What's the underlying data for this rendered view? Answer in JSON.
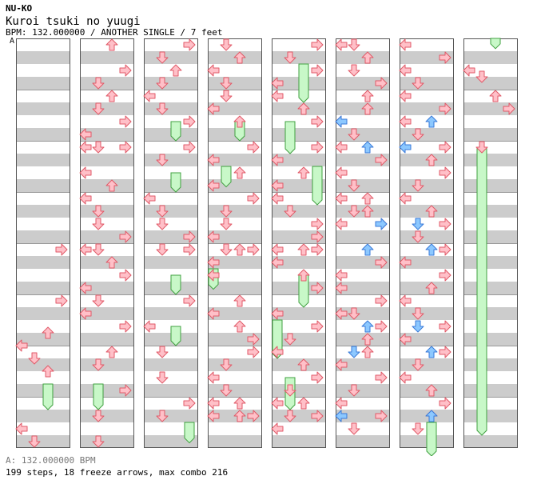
{
  "header": {
    "artist": "NU-KO",
    "title": "Kuroi tsuki no yuugi",
    "info": "BPM: 132.000000 / ANOTHER SINGLE / 7 feet",
    "marker": "A"
  },
  "footer": {
    "bpm": "A: 132.000000 BPM",
    "stats": "199 steps, 18 freeze arrows, max combo 216"
  },
  "colors": {
    "normal": "#ffc0c8",
    "normal_stroke": "#e05a68",
    "blue": "#8cc8ff",
    "blue_stroke": "#3a7ad8",
    "freeze": "#c8f8c8",
    "freeze_stroke": "#40a040",
    "band": "#cccccc"
  },
  "chart_data": {
    "type": "step_chart",
    "columns": 8,
    "measures_per_column": 8,
    "lanes": [
      "left",
      "down",
      "up",
      "right"
    ],
    "arrows": [
      [
        0,
        4.125,
        3
      ],
      [
        0,
        5.125,
        3
      ],
      [
        0,
        5.75,
        2
      ],
      [
        0,
        6,
        0
      ],
      [
        0,
        6.25,
        1
      ],
      [
        0,
        6.5,
        2
      ],
      [
        0,
        7.625,
        0
      ],
      [
        0,
        7.875,
        1
      ],
      [
        1,
        0.125,
        2
      ],
      [
        1,
        0.625,
        3
      ],
      [
        1,
        0.875,
        1
      ],
      [
        1,
        1.125,
        2
      ],
      [
        1,
        1.375,
        1
      ],
      [
        1,
        1.625,
        3
      ],
      [
        1,
        1.875,
        0
      ],
      [
        1,
        2.125,
        0
      ],
      [
        1,
        2.125,
        1
      ],
      [
        1,
        2.125,
        3
      ],
      [
        1,
        2.625,
        0
      ],
      [
        1,
        2.875,
        2
      ],
      [
        1,
        3.125,
        0
      ],
      [
        1,
        3.375,
        1
      ],
      [
        1,
        3.625,
        1
      ],
      [
        1,
        3.875,
        3
      ],
      [
        1,
        4.125,
        0
      ],
      [
        1,
        4.125,
        1
      ],
      [
        1,
        4.375,
        2
      ],
      [
        1,
        4.625,
        3
      ],
      [
        1,
        4.875,
        0
      ],
      [
        1,
        5.125,
        1
      ],
      [
        1,
        5.375,
        0
      ],
      [
        1,
        5.625,
        3
      ],
      [
        1,
        6.125,
        2
      ],
      [
        1,
        6.375,
        1
      ],
      [
        1,
        6.875,
        3
      ],
      [
        1,
        7.375,
        1
      ],
      [
        1,
        7.875,
        1
      ],
      [
        2,
        0.125,
        3
      ],
      [
        2,
        0.375,
        1
      ],
      [
        2,
        0.625,
        2
      ],
      [
        2,
        0.875,
        1
      ],
      [
        2,
        1.125,
        0
      ],
      [
        2,
        1.375,
        1
      ],
      [
        2,
        1.625,
        3
      ],
      [
        2,
        2.125,
        3
      ],
      [
        2,
        2.375,
        1
      ],
      [
        2,
        3.125,
        0
      ],
      [
        2,
        3.375,
        1
      ],
      [
        2,
        3.625,
        1
      ],
      [
        2,
        3.875,
        3
      ],
      [
        2,
        4.125,
        3
      ],
      [
        2,
        4.125,
        1
      ],
      [
        2,
        5.125,
        3
      ],
      [
        2,
        5.625,
        0
      ],
      [
        2,
        6.125,
        1
      ],
      [
        2,
        6.625,
        1
      ],
      [
        2,
        7.125,
        3
      ],
      [
        2,
        7.375,
        1
      ],
      [
        3,
        0.125,
        1
      ],
      [
        3,
        0.375,
        2
      ],
      [
        3,
        0.625,
        0
      ],
      [
        3,
        0.875,
        1
      ],
      [
        3,
        1.125,
        1
      ],
      [
        3,
        1.375,
        0
      ],
      [
        3,
        1.625,
        2
      ],
      [
        3,
        2.125,
        3
      ],
      [
        3,
        2.375,
        0
      ],
      [
        3,
        2.625,
        2
      ],
      [
        3,
        2.875,
        0
      ],
      [
        3,
        3.125,
        3
      ],
      [
        3,
        3.375,
        1
      ],
      [
        3,
        3.625,
        1
      ],
      [
        3,
        3.875,
        0
      ],
      [
        3,
        4.125,
        1
      ],
      [
        3,
        4.125,
        2
      ],
      [
        3,
        4.125,
        3
      ],
      [
        3,
        4.375,
        0
      ],
      [
        3,
        4.625,
        0
      ],
      [
        3,
        5.125,
        2
      ],
      [
        3,
        5.375,
        0
      ],
      [
        3,
        5.625,
        2
      ],
      [
        3,
        5.875,
        3
      ],
      [
        3,
        6.125,
        3
      ],
      [
        3,
        6.375,
        1
      ],
      [
        3,
        6.625,
        0
      ],
      [
        3,
        6.875,
        1
      ],
      [
        3,
        7.125,
        0
      ],
      [
        3,
        7.125,
        2
      ],
      [
        3,
        7.375,
        0
      ],
      [
        3,
        7.375,
        2
      ],
      [
        3,
        7.375,
        3
      ],
      [
        4,
        0.125,
        3
      ],
      [
        4,
        0.375,
        1
      ],
      [
        4,
        0.625,
        3
      ],
      [
        4,
        0.875,
        0
      ],
      [
        4,
        1.125,
        0
      ],
      [
        4,
        1.375,
        2
      ],
      [
        4,
        1.625,
        3
      ],
      [
        4,
        2.125,
        3
      ],
      [
        4,
        2.375,
        0
      ],
      [
        4,
        2.625,
        2
      ],
      [
        4,
        2.875,
        0
      ],
      [
        4,
        3.125,
        0
      ],
      [
        4,
        3.375,
        1
      ],
      [
        4,
        3.625,
        3
      ],
      [
        4,
        3.875,
        3
      ],
      [
        4,
        4.125,
        0
      ],
      [
        4,
        4.125,
        2
      ],
      [
        4,
        4.125,
        3
      ],
      [
        4,
        4.375,
        0
      ],
      [
        4,
        4.625,
        2
      ],
      [
        4,
        4.875,
        3
      ],
      [
        4,
        5.375,
        0
      ],
      [
        4,
        5.625,
        3
      ],
      [
        4,
        5.875,
        1
      ],
      [
        4,
        6.125,
        0
      ],
      [
        4,
        6.375,
        2
      ],
      [
        4,
        6.625,
        3
      ],
      [
        4,
        6.875,
        1
      ],
      [
        4,
        7.125,
        0
      ],
      [
        4,
        7.125,
        2
      ],
      [
        4,
        7.375,
        1
      ],
      [
        4,
        7.375,
        3
      ],
      [
        4,
        7.625,
        0
      ]
    ],
    "blue_arrows": [
      [
        5,
        1.625,
        0
      ],
      [
        5,
        2.125,
        2
      ],
      [
        5,
        3.625,
        3
      ],
      [
        5,
        4.125,
        2
      ],
      [
        5,
        5.625,
        2
      ],
      [
        5,
        6.125,
        1
      ],
      [
        5,
        7.375,
        0
      ],
      [
        6,
        1.625,
        2
      ],
      [
        6,
        2.125,
        0
      ],
      [
        6,
        3.625,
        1
      ],
      [
        6,
        4.125,
        2
      ],
      [
        6,
        5.625,
        1
      ],
      [
        6,
        6.125,
        2
      ],
      [
        6,
        7.375,
        2
      ]
    ],
    "arrows_b": [
      [
        5,
        0.125,
        0
      ],
      [
        5,
        0.125,
        1
      ],
      [
        5,
        0.375,
        2
      ],
      [
        5,
        0.625,
        1
      ],
      [
        5,
        0.875,
        3
      ],
      [
        5,
        1.125,
        2
      ],
      [
        5,
        1.375,
        2
      ],
      [
        5,
        1.625,
        0
      ],
      [
        5,
        1.875,
        1
      ],
      [
        5,
        2.125,
        0
      ],
      [
        5,
        2.375,
        3
      ],
      [
        5,
        2.625,
        0
      ],
      [
        5,
        2.875,
        1
      ],
      [
        5,
        3.125,
        0
      ],
      [
        5,
        3.125,
        2
      ],
      [
        5,
        3.375,
        1
      ],
      [
        5,
        3.375,
        2
      ],
      [
        5,
        3.625,
        0
      ],
      [
        5,
        3.625,
        3
      ],
      [
        5,
        4.375,
        3
      ],
      [
        5,
        4.625,
        0
      ],
      [
        5,
        4.875,
        0
      ],
      [
        5,
        5.125,
        3
      ],
      [
        5,
        5.375,
        0
      ],
      [
        5,
        5.375,
        1
      ],
      [
        5,
        5.625,
        3
      ],
      [
        5,
        5.875,
        2
      ],
      [
        5,
        6.125,
        2
      ],
      [
        5,
        6.375,
        0
      ],
      [
        5,
        6.625,
        3
      ],
      [
        5,
        6.875,
        1
      ],
      [
        5,
        7.125,
        0
      ],
      [
        5,
        7.375,
        3
      ],
      [
        5,
        7.625,
        1
      ],
      [
        6,
        0.125,
        0
      ],
      [
        6,
        0.375,
        3
      ],
      [
        6,
        0.625,
        0
      ],
      [
        6,
        0.875,
        1
      ],
      [
        6,
        1.125,
        0
      ],
      [
        6,
        1.375,
        3
      ],
      [
        6,
        1.625,
        0
      ],
      [
        6,
        1.875,
        1
      ],
      [
        6,
        2.125,
        3
      ],
      [
        6,
        2.375,
        2
      ],
      [
        6,
        2.625,
        3
      ],
      [
        6,
        2.875,
        1
      ],
      [
        6,
        3.125,
        0
      ],
      [
        6,
        3.375,
        2
      ],
      [
        6,
        3.625,
        3
      ],
      [
        6,
        3.875,
        1
      ],
      [
        6,
        4.125,
        3
      ],
      [
        6,
        4.375,
        0
      ],
      [
        6,
        4.625,
        3
      ],
      [
        6,
        4.875,
        2
      ],
      [
        6,
        5.125,
        0
      ],
      [
        6,
        5.375,
        1
      ],
      [
        6,
        5.625,
        3
      ],
      [
        6,
        5.875,
        0
      ],
      [
        6,
        6.125,
        3
      ],
      [
        6,
        6.375,
        1
      ],
      [
        6,
        6.625,
        0
      ],
      [
        6,
        6.875,
        2
      ],
      [
        6,
        7.125,
        3
      ],
      [
        6,
        7.375,
        2
      ],
      [
        6,
        7.625,
        1
      ],
      [
        7,
        0.625,
        0
      ],
      [
        7,
        0.75,
        1
      ],
      [
        7,
        1.125,
        2
      ],
      [
        7,
        1.375,
        3
      ],
      [
        7,
        2.125,
        1
      ]
    ],
    "freezes": [
      [
        0,
        6.75,
        7.25,
        2
      ],
      [
        1,
        6.75,
        7.25,
        1
      ],
      [
        2,
        1.625,
        2.0,
        2
      ],
      [
        2,
        2.625,
        3.0,
        2
      ],
      [
        2,
        4.625,
        5.0,
        2
      ],
      [
        2,
        5.625,
        6.0,
        2
      ],
      [
        2,
        7.5,
        7.9,
        3
      ],
      [
        3,
        1.625,
        2.0,
        2
      ],
      [
        3,
        2.5,
        2.9,
        1
      ],
      [
        3,
        4.5,
        4.9,
        0
      ],
      [
        4,
        0.5,
        1.25,
        2
      ],
      [
        4,
        1.625,
        2.25,
        1
      ],
      [
        4,
        2.5,
        3.25,
        3
      ],
      [
        4,
        4.625,
        5.25,
        2
      ],
      [
        4,
        5.5,
        6.25,
        0
      ],
      [
        4,
        6.625,
        7.25,
        1
      ],
      [
        6,
        7.5,
        8.2,
        2
      ],
      [
        7,
        0.0,
        0.2,
        2
      ],
      [
        7,
        2.125,
        7.75,
        1
      ]
    ]
  }
}
